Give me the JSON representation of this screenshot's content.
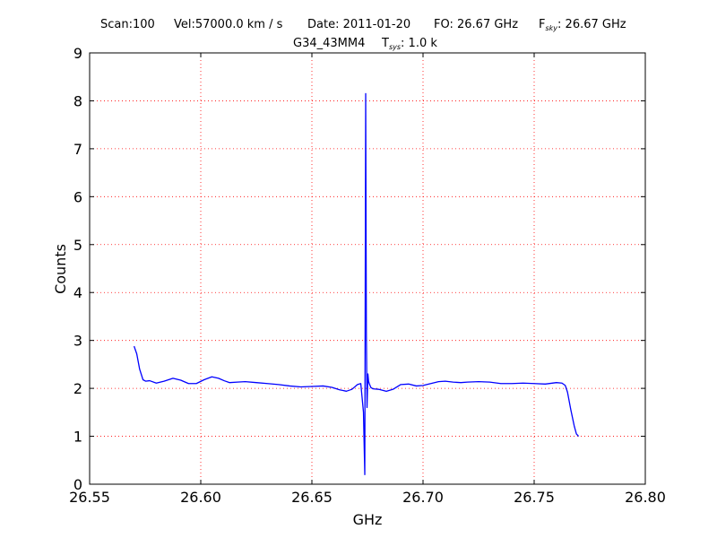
{
  "title": {
    "scan": "Scan:100",
    "vel": "Vel:57000.0 km / s",
    "date": "Date: 2011-01-20",
    "fo": "FO: 26.67 GHz",
    "fsky_prefix": "F",
    "fsky_sub": "sky",
    "fsky_suffix": ": 26.67 GHz",
    "source": "G34_43MM4",
    "tsys_prefix": "T",
    "tsys_sub": "sys",
    "tsys_suffix": ": 1.0 k"
  },
  "colors": {
    "line": "#0000ff",
    "grid": "#ff0000",
    "axes": "#000000"
  },
  "chart_data": {
    "type": "line",
    "xlabel": "GHz",
    "ylabel": "Counts",
    "xlim": [
      26.55,
      26.8
    ],
    "ylim": [
      0,
      9
    ],
    "xticks": [
      "26.55",
      "26.60",
      "26.65",
      "26.70",
      "26.75",
      "26.80"
    ],
    "yticks": [
      "0",
      "1",
      "2",
      "3",
      "4",
      "5",
      "6",
      "7",
      "8",
      "9"
    ],
    "grid": true,
    "series": [
      {
        "x": [
          26.57,
          26.5712,
          26.5725,
          26.574,
          26.5752,
          26.577,
          26.58,
          26.5835,
          26.5875,
          26.591,
          26.5945,
          26.598,
          26.6015,
          26.605,
          26.608,
          26.6105,
          26.613,
          26.6165,
          26.62,
          26.625,
          26.63,
          26.635,
          26.64,
          26.645,
          26.65,
          26.655,
          26.659,
          26.6625,
          26.6655,
          26.668,
          26.6705,
          26.672,
          26.6732,
          26.6738,
          26.6742,
          26.6745,
          26.6748,
          26.6752,
          26.6755,
          26.6758,
          26.6765,
          26.6775,
          26.68,
          26.6835,
          26.6865,
          26.69,
          26.6935,
          26.697,
          26.7,
          26.7035,
          26.707,
          26.71,
          26.7135,
          26.717,
          26.72,
          26.725,
          26.73,
          26.735,
          26.74,
          26.745,
          26.75,
          26.755,
          26.76,
          26.7625,
          26.764,
          26.765,
          26.7665,
          26.768,
          26.769,
          26.77
        ],
        "values": [
          2.88,
          2.72,
          2.4,
          2.18,
          2.15,
          2.16,
          2.11,
          2.15,
          2.21,
          2.17,
          2.1,
          2.1,
          2.18,
          2.24,
          2.21,
          2.16,
          2.12,
          2.13,
          2.14,
          2.12,
          2.1,
          2.08,
          2.05,
          2.03,
          2.04,
          2.05,
          2.02,
          1.97,
          1.94,
          1.98,
          2.08,
          2.1,
          1.5,
          0.2,
          8.15,
          3.2,
          1.6,
          2.3,
          2.15,
          2.1,
          2.02,
          1.99,
          1.98,
          1.94,
          1.98,
          2.08,
          2.09,
          2.05,
          2.06,
          2.1,
          2.14,
          2.15,
          2.13,
          2.12,
          2.13,
          2.14,
          2.13,
          2.1,
          2.1,
          2.11,
          2.1,
          2.09,
          2.12,
          2.11,
          2.06,
          1.92,
          1.55,
          1.22,
          1.05,
          1.0
        ]
      }
    ]
  }
}
